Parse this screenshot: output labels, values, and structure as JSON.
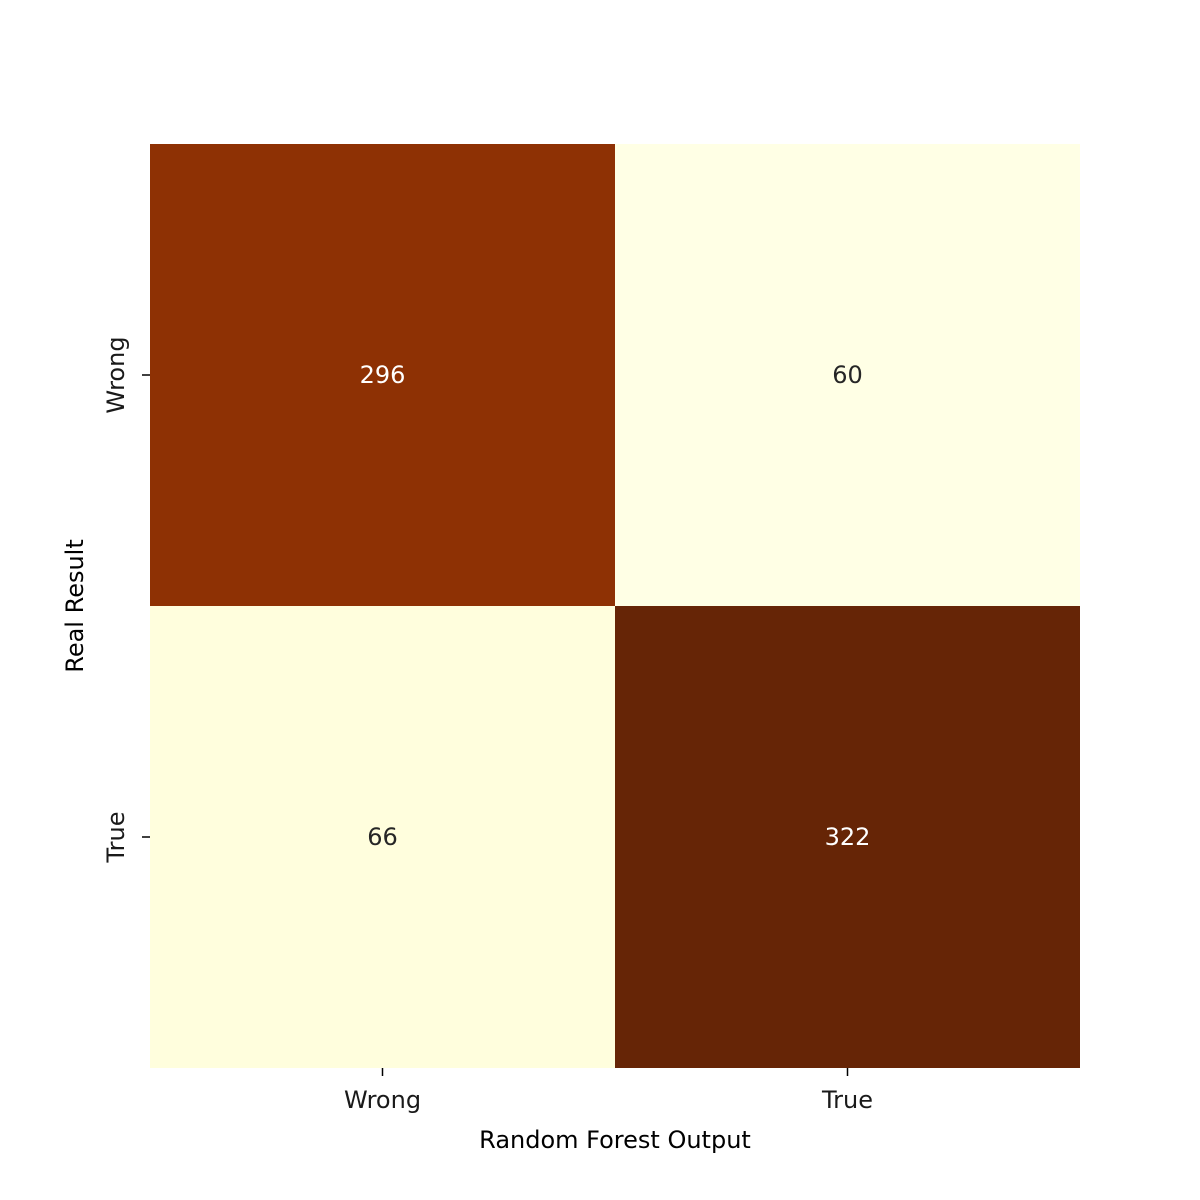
{
  "chart_data": {
    "type": "heatmap",
    "title": "",
    "xlabel": "Random Forest Output",
    "ylabel": "Real Result",
    "x_categories": [
      "Wrong",
      "True"
    ],
    "y_categories": [
      "Wrong",
      "True"
    ],
    "values": [
      [
        296,
        60
      ],
      [
        66,
        322
      ]
    ],
    "colormap": "YlOrBr",
    "colorbar": false,
    "grid": false,
    "colors": {
      "low": "#ffffe5",
      "high": "#662506",
      "text_on_dark": "#ffffff",
      "text_on_light": "#262626"
    }
  }
}
